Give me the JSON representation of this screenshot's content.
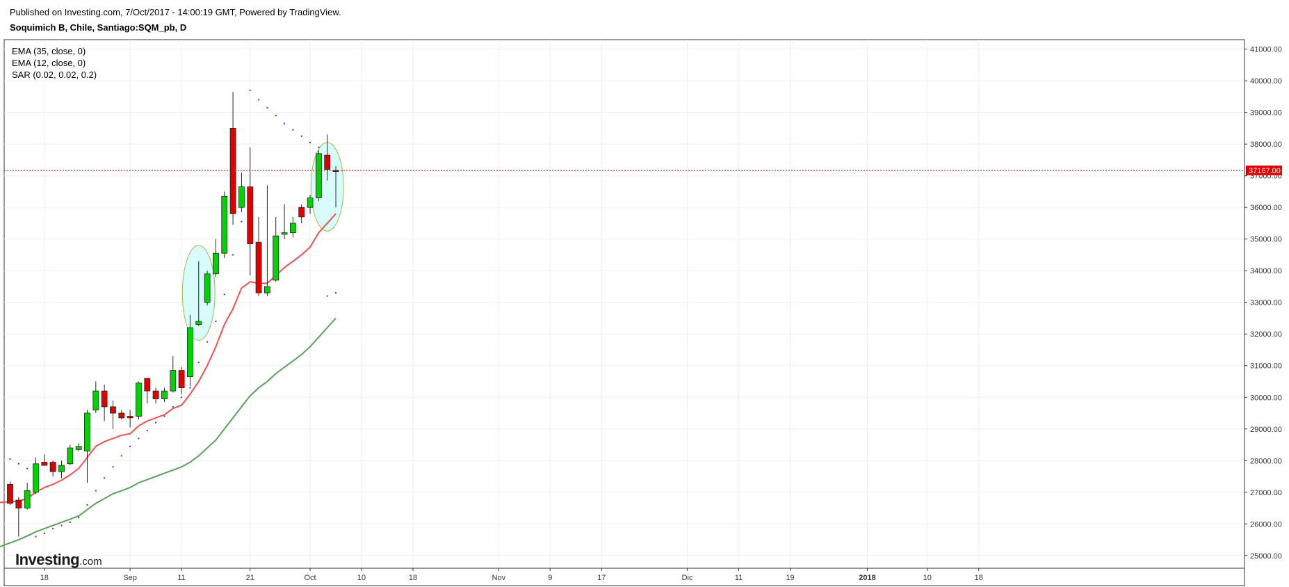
{
  "header": {
    "published": "Published on Investing.com, 7/Oct/2017 - 14:00:19 GMT, Powered by TradingView.",
    "symbol": "Soquimich B, Chile, Santiago:SQM_pb, D"
  },
  "legend": {
    "items": [
      "EMA (35, close, 0)",
      "EMA (12, close, 0)",
      "SAR (0.02, 0.02, 0.2)"
    ]
  },
  "logo": {
    "text": "Investing",
    "suffix": ".com"
  },
  "colors": {
    "up": "#00d400",
    "down": "#e00000",
    "ema12": "#f05050",
    "ema35": "#5aa05a",
    "sar": "#3333dd",
    "price_line": "#e00000",
    "highlight_fill": "#d8fbfb",
    "highlight_stroke": "#9bbd4a",
    "grid": "#eeeeee"
  },
  "chart_data": {
    "type": "candlestick",
    "y_axis": {
      "ylim": [
        24600,
        41300
      ],
      "ticks": [
        25000,
        26000,
        27000,
        28000,
        29000,
        30000,
        31000,
        32000,
        33000,
        34000,
        35000,
        36000,
        37000,
        38000,
        39000,
        40000,
        41000
      ],
      "tick_labels": [
        "25000.00",
        "26000.00",
        "27000.00",
        "28000.00",
        "29000.00",
        "30000.00",
        "31000.00",
        "32000.00",
        "33000.00",
        "34000.00",
        "35000.00",
        "36000.00",
        "37000.00",
        "38000.00",
        "39000.00",
        "40000.00",
        "41000.00"
      ]
    },
    "x_axis": {
      "ticks": [
        {
          "date": "2017-08-18",
          "label": "18"
        },
        {
          "date": "2017-09-01",
          "label": "Sep"
        },
        {
          "date": "2017-09-11",
          "label": "11"
        },
        {
          "date": "2017-09-21",
          "label": "21"
        },
        {
          "date": "2017-10-02",
          "label": "Oct"
        },
        {
          "date": "2017-10-10",
          "label": "10"
        },
        {
          "date": "2017-10-18",
          "label": "18"
        },
        {
          "date": "2017-11-01",
          "label": "Nov"
        },
        {
          "date": "2017-11-09",
          "label": "9"
        },
        {
          "date": "2017-11-17",
          "label": "17"
        },
        {
          "date": "2017-12-01",
          "label": "Dic"
        },
        {
          "date": "2017-12-11",
          "label": "11"
        },
        {
          "date": "2017-12-19",
          "label": "19"
        },
        {
          "date": "2018-01-01",
          "label": "2018"
        },
        {
          "date": "2018-01-10",
          "label": "10"
        },
        {
          "date": "2018-01-18",
          "label": "18"
        }
      ]
    },
    "last_price": 37167,
    "last_price_label": "37167.00",
    "candles": [
      {
        "date": "2017-08-14",
        "o": 27250,
        "h": 27350,
        "l": 26600,
        "c": 26650
      },
      {
        "date": "2017-08-15",
        "o": 26750,
        "h": 26850,
        "l": 25600,
        "c": 26500
      },
      {
        "date": "2017-08-16",
        "o": 26500,
        "h": 27300,
        "l": 26450,
        "c": 27050
      },
      {
        "date": "2017-08-17",
        "o": 27000,
        "h": 28100,
        "l": 26950,
        "c": 27900
      },
      {
        "date": "2017-08-18",
        "o": 27950,
        "h": 28200,
        "l": 27850,
        "c": 27850
      },
      {
        "date": "2017-08-21",
        "o": 27950,
        "h": 28000,
        "l": 27500,
        "c": 27650
      },
      {
        "date": "2017-08-22",
        "o": 27650,
        "h": 28000,
        "l": 27450,
        "c": 27850
      },
      {
        "date": "2017-08-23",
        "o": 27900,
        "h": 28500,
        "l": 27850,
        "c": 28400
      },
      {
        "date": "2017-08-24",
        "o": 28350,
        "h": 28550,
        "l": 28300,
        "c": 28450
      },
      {
        "date": "2017-08-25",
        "o": 28300,
        "h": 29600,
        "l": 27300,
        "c": 29500
      },
      {
        "date": "2017-08-28",
        "o": 29600,
        "h": 30500,
        "l": 29500,
        "c": 30200
      },
      {
        "date": "2017-08-29",
        "o": 30200,
        "h": 30400,
        "l": 29250,
        "c": 29700
      },
      {
        "date": "2017-08-30",
        "o": 29700,
        "h": 29900,
        "l": 29000,
        "c": 29500
      },
      {
        "date": "2017-08-31",
        "o": 29500,
        "h": 29600,
        "l": 29300,
        "c": 29350
      },
      {
        "date": "2017-09-01",
        "o": 29400,
        "h": 29600,
        "l": 29050,
        "c": 29350
      },
      {
        "date": "2017-09-04",
        "o": 29400,
        "h": 30500,
        "l": 29300,
        "c": 30450
      },
      {
        "date": "2017-09-05",
        "o": 30600,
        "h": 30600,
        "l": 29800,
        "c": 30200
      },
      {
        "date": "2017-09-06",
        "o": 30200,
        "h": 30300,
        "l": 29800,
        "c": 29950
      },
      {
        "date": "2017-09-07",
        "o": 29950,
        "h": 30300,
        "l": 29850,
        "c": 30200
      },
      {
        "date": "2017-09-08",
        "o": 30200,
        "h": 31300,
        "l": 30150,
        "c": 30850
      },
      {
        "date": "2017-09-11",
        "o": 30850,
        "h": 30950,
        "l": 30100,
        "c": 30300
      },
      {
        "date": "2017-09-12",
        "o": 30650,
        "h": 32600,
        "l": 30350,
        "c": 32200
      },
      {
        "date": "2017-09-13",
        "o": 32300,
        "h": 34300,
        "l": 32250,
        "c": 32400
      },
      {
        "date": "2017-09-14",
        "o": 33000,
        "h": 34000,
        "l": 32900,
        "c": 33900
      },
      {
        "date": "2017-09-15",
        "o": 33900,
        "h": 35000,
        "l": 33800,
        "c": 34550
      },
      {
        "date": "2017-09-18",
        "o": 34550,
        "h": 36500,
        "l": 34400,
        "c": 36350
      },
      {
        "date": "2017-09-19",
        "o": 38500,
        "h": 39650,
        "l": 35450,
        "c": 35800
      },
      {
        "date": "2017-09-20",
        "o": 36000,
        "h": 37100,
        "l": 35850,
        "c": 36650
      },
      {
        "date": "2017-09-21",
        "o": 36650,
        "h": 37900,
        "l": 33850,
        "c": 34850
      },
      {
        "date": "2017-09-22",
        "o": 34900,
        "h": 35700,
        "l": 33200,
        "c": 33300
      },
      {
        "date": "2017-09-25",
        "o": 33300,
        "h": 36700,
        "l": 33200,
        "c": 33500
      },
      {
        "date": "2017-09-26",
        "o": 33700,
        "h": 35700,
        "l": 33650,
        "c": 35100
      },
      {
        "date": "2017-09-27",
        "o": 35150,
        "h": 36100,
        "l": 35000,
        "c": 35200
      },
      {
        "date": "2017-09-28",
        "o": 35200,
        "h": 35700,
        "l": 35050,
        "c": 35500
      },
      {
        "date": "2017-09-29",
        "o": 36000,
        "h": 36100,
        "l": 35500,
        "c": 35700
      },
      {
        "date": "2017-10-02",
        "o": 36000,
        "h": 36400,
        "l": 35800,
        "c": 36300
      },
      {
        "date": "2017-10-03",
        "o": 36300,
        "h": 37800,
        "l": 36200,
        "c": 37700
      },
      {
        "date": "2017-10-04",
        "o": 37650,
        "h": 38300,
        "l": 36850,
        "c": 37200
      },
      {
        "date": "2017-10-05",
        "o": 37167,
        "h": 37300,
        "l": 36000,
        "c": 37167
      }
    ],
    "ema12": [
      26700,
      26720,
      26800,
      27000,
      27150,
      27250,
      27380,
      27550,
      27750,
      28100,
      28450,
      28600,
      28700,
      28800,
      28850,
      29100,
      29250,
      29350,
      29450,
      29650,
      29750,
      30100,
      30500,
      31000,
      31600,
      32300,
      32800,
      33450,
      33650,
      33600,
      33600,
      33850,
      34100,
      34300,
      34500,
      34750,
      35200,
      35500,
      35800
    ],
    "ema35": [
      25400,
      25500,
      25620,
      25750,
      25850,
      25950,
      26050,
      26150,
      26250,
      26450,
      26650,
      26800,
      26950,
      27050,
      27150,
      27300,
      27400,
      27500,
      27600,
      27700,
      27800,
      27950,
      28150,
      28400,
      28650,
      29000,
      29350,
      29700,
      30050,
      30300,
      30500,
      30750,
      30950,
      31150,
      31350,
      31600,
      31900,
      32200,
      32500
    ],
    "sar": [
      28050,
      27900,
      27750,
      25600,
      25700,
      25850,
      25950,
      26050,
      26200,
      26600,
      27050,
      27450,
      27800,
      28150,
      28450,
      28700,
      28950,
      29200,
      29400,
      29700,
      30000,
      30300,
      31100,
      31750,
      32400,
      33250,
      34500,
      35550,
      39700,
      39400,
      39150,
      38900,
      38650,
      38450,
      38250,
      38050,
      37900,
      33200,
      33300
    ],
    "highlights": [
      {
        "center_index": 22,
        "y_center": 33300,
        "x_radius_bars": 1.9,
        "y_radius": 1500
      },
      {
        "center_index": 37,
        "y_center": 36650,
        "x_radius_bars": 1.9,
        "y_radius": 1400
      }
    ]
  }
}
